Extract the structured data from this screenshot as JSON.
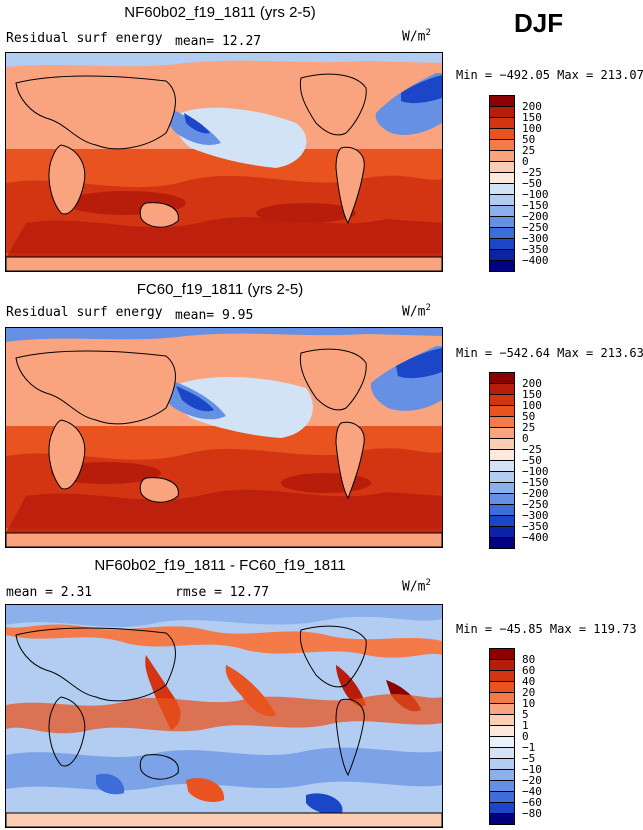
{
  "season": "DJF",
  "units_base": "W/m",
  "units_exp": "2",
  "panels": [
    {
      "title": "NF60b02_f19_1811 (yrs 2-5)",
      "left_label": "Residual surf energy",
      "mid_label": "mean=  12.27",
      "minmax": "Min = −492.05 Max = 213.07",
      "colorbar": {
        "labels": [
          "200",
          "150",
          "100",
          "50",
          "25",
          "0",
          "−25",
          "−50",
          "−100",
          "−150",
          "−200",
          "−250",
          "−300",
          "−350",
          "−400"
        ],
        "colors": [
          "#8b0000",
          "#b81d0c",
          "#d33513",
          "#e8531f",
          "#f47a4a",
          "#f9a47f",
          "#fbcdb2",
          "#fde8dc",
          "#d3e3f6",
          "#b2cdf1",
          "#8bb0eb",
          "#6590e3",
          "#3e6cd9",
          "#1b46c7",
          "#0a23a4",
          "#000080"
        ]
      }
    },
    {
      "title": "FC60_f19_1811 (yrs 2-5)",
      "left_label": "Residual surf energy",
      "mid_label": "mean=   9.95",
      "minmax": "Min = −542.64 Max = 213.63",
      "colorbar": {
        "labels": [
          "200",
          "150",
          "100",
          "50",
          "25",
          "0",
          "−25",
          "−50",
          "−100",
          "−150",
          "−200",
          "−250",
          "−300",
          "−350",
          "−400"
        ],
        "colors": [
          "#8b0000",
          "#b81d0c",
          "#d33513",
          "#e8531f",
          "#f47a4a",
          "#f9a47f",
          "#fbcdb2",
          "#fde8dc",
          "#d3e3f6",
          "#b2cdf1",
          "#8bb0eb",
          "#6590e3",
          "#3e6cd9",
          "#1b46c7",
          "#0a23a4",
          "#000080"
        ]
      }
    },
    {
      "title": "NF60b02_f19_1811 - FC60_f19_1811",
      "left_label": "mean =    2.31",
      "mid_label": "rmse =   12.77",
      "minmax": "Min = −45.85 Max = 119.73",
      "colorbar": {
        "labels": [
          "80",
          "60",
          "40",
          "20",
          "10",
          "5",
          "1",
          "0",
          "−1",
          "−5",
          "−10",
          "−20",
          "−40",
          "−60",
          "−80"
        ],
        "colors": [
          "#8b0000",
          "#b81d0c",
          "#d33513",
          "#e8531f",
          "#f47a4a",
          "#f9a47f",
          "#fbcdb2",
          "#fde8dc",
          "#e9f1fb",
          "#d3e3f6",
          "#b2cdf1",
          "#8bb0eb",
          "#6590e3",
          "#3e6cd9",
          "#1b46c7",
          "#000080"
        ]
      }
    }
  ]
}
